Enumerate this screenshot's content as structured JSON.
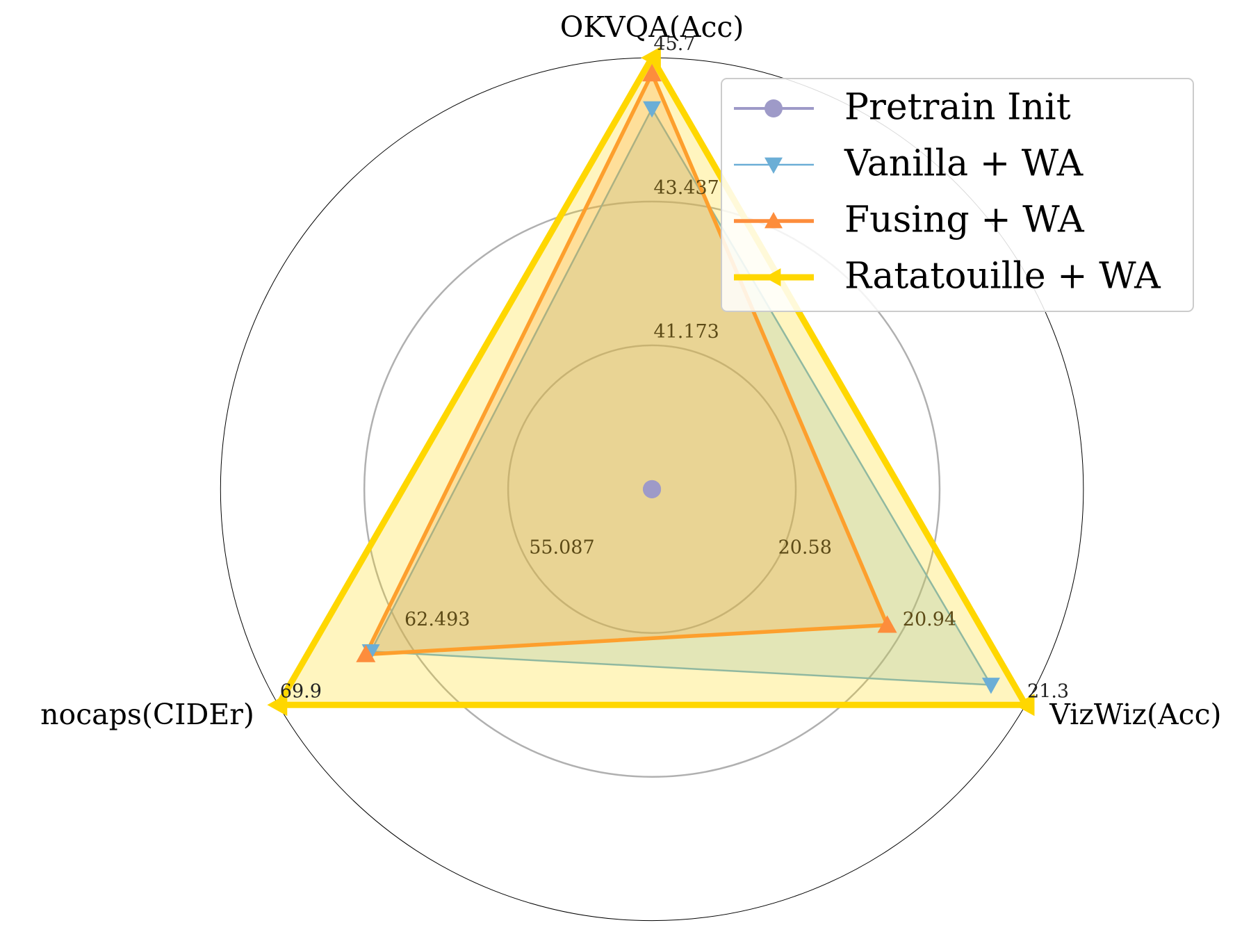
{
  "chart_data": {
    "type": "radar",
    "axes": [
      {
        "name": "OKVQA(Acc)",
        "lim": [
          38.909,
          45.7
        ],
        "ticks": [
          41.173,
          43.437,
          45.7
        ]
      },
      {
        "name": "VizWiz(Acc)",
        "lim": [
          20.22,
          21.3
        ],
        "ticks": [
          20.58,
          20.94,
          21.3
        ]
      },
      {
        "name": "nocaps(CIDEr)",
        "lim": [
          47.681,
          69.9
        ],
        "ticks": [
          55.087,
          62.493,
          69.9
        ]
      }
    ],
    "series": [
      {
        "name": "Pretrain Init",
        "color": "#9e9ac8",
        "marker": "circle",
        "values": [
          38.909,
          20.22,
          47.681
        ]
      },
      {
        "name": "Vanilla + WA",
        "color": "#6baed6",
        "marker": "triangle-down",
        "values": [
          44.9,
          21.2,
          64.4
        ]
      },
      {
        "name": "Fusing + WA",
        "color": "#fd8d3c",
        "marker": "triangle-up",
        "values": [
          45.45,
          20.9,
          64.7
        ]
      },
      {
        "name": "Ratatouille + WA",
        "color": "#ffd700",
        "marker": "triangle-left",
        "values": [
          45.7,
          21.3,
          69.9
        ]
      }
    ],
    "legend": "upper right"
  }
}
